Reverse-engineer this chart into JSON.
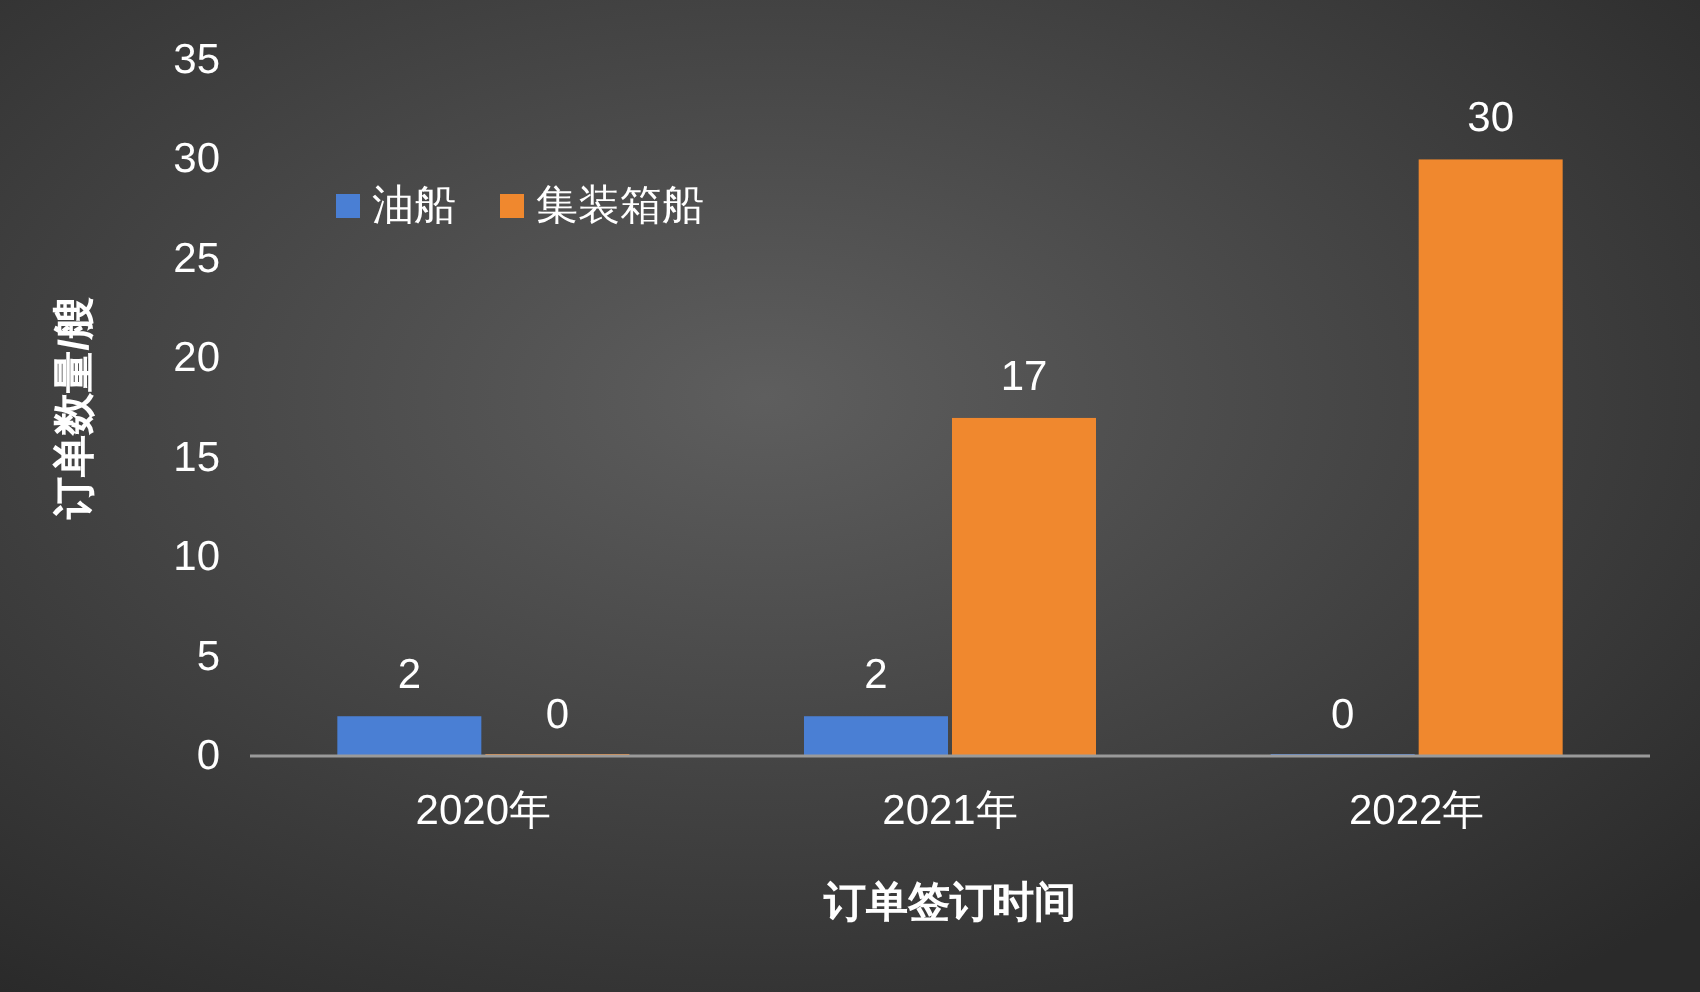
{
  "chart_data": {
    "type": "bar",
    "xlabel": "订单签订时间",
    "ylabel": "订单数量/艘",
    "categories": [
      "2020年",
      "2021年",
      "2022年"
    ],
    "series": [
      {
        "name": "油船",
        "color": "#4a7fd4",
        "values": [
          2,
          2,
          0
        ]
      },
      {
        "name": "集装箱船",
        "color": "#f0882e",
        "values": [
          0,
          17,
          30
        ]
      }
    ],
    "ylim": [
      0,
      35
    ],
    "yticks": [
      0,
      5,
      10,
      15,
      20,
      25,
      30,
      35
    ],
    "data_labels": true,
    "legend": "top left",
    "grid": false
  }
}
